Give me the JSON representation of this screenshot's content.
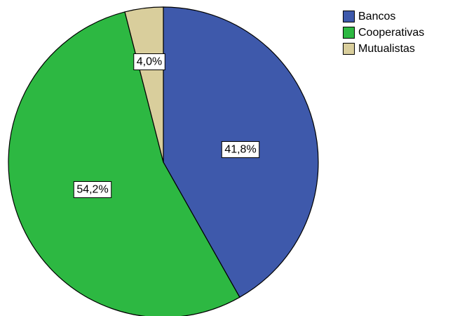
{
  "chart_data": {
    "type": "pie",
    "title": "",
    "categories": [
      "Bancos",
      "Cooperativas",
      "Mutualistas"
    ],
    "values": [
      41.8,
      54.2,
      4.0
    ],
    "data_labels": [
      "41,8%",
      "54,2%",
      "4,0%"
    ],
    "colors": [
      "#3e59ab",
      "#2db842",
      "#d9ce9c"
    ],
    "start": "top, clockwise",
    "legend_position": "top-right"
  }
}
